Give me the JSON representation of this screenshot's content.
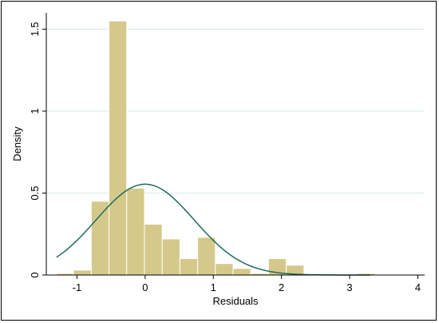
{
  "chart_data": {
    "type": "bar",
    "subtype": "histogram-with-normal-density-overlay",
    "title": "",
    "xlabel": "Residuals",
    "ylabel": "Density",
    "xlim": [
      -1.45,
      4.1
    ],
    "ylim": [
      0,
      1.6
    ],
    "x_ticks": [
      {
        "value": -1,
        "label": "-1"
      },
      {
        "value": 0,
        "label": "0"
      },
      {
        "value": 1,
        "label": "1"
      },
      {
        "value": 2,
        "label": "2"
      },
      {
        "value": 3,
        "label": "3"
      },
      {
        "value": 4,
        "label": "4"
      }
    ],
    "y_ticks": [
      {
        "value": 0,
        "label": "0"
      },
      {
        "value": 0.5,
        "label": "0.5"
      },
      {
        "value": 1,
        "label": "1"
      },
      {
        "value": 1.5,
        "label": "1.5"
      }
    ],
    "grid": "horizontal",
    "legend": "none",
    "bins": [
      {
        "start": -1.3,
        "end": -1.05,
        "density": 0.01
      },
      {
        "start": -1.05,
        "end": -0.79,
        "density": 0.03
      },
      {
        "start": -0.79,
        "end": -0.53,
        "density": 0.45
      },
      {
        "start": -0.53,
        "end": -0.27,
        "density": 1.55
      },
      {
        "start": -0.27,
        "end": -0.01,
        "density": 0.53
      },
      {
        "start": -0.01,
        "end": 0.25,
        "density": 0.31
      },
      {
        "start": 0.25,
        "end": 0.51,
        "density": 0.22
      },
      {
        "start": 0.51,
        "end": 0.77,
        "density": 0.1
      },
      {
        "start": 0.77,
        "end": 1.03,
        "density": 0.23
      },
      {
        "start": 1.03,
        "end": 1.29,
        "density": 0.07
      },
      {
        "start": 1.29,
        "end": 1.55,
        "density": 0.04
      },
      {
        "start": 1.55,
        "end": 1.81,
        "density": 0.01
      },
      {
        "start": 1.81,
        "end": 2.07,
        "density": 0.1
      },
      {
        "start": 2.07,
        "end": 2.33,
        "density": 0.06
      },
      {
        "start": 2.33,
        "end": 2.59,
        "density": 0.005
      },
      {
        "start": 3.11,
        "end": 3.37,
        "density": 0.01
      }
    ],
    "normal_curve": {
      "mean": 0.0,
      "sd": 0.72,
      "x_range": [
        -1.3,
        3.3
      ]
    },
    "colors": {
      "bar_fill": "#d4c98a",
      "bar_stroke": "#ffffff",
      "curve": "#1d6b5f",
      "grid": "#dbeaea",
      "axis": "#000000"
    }
  }
}
